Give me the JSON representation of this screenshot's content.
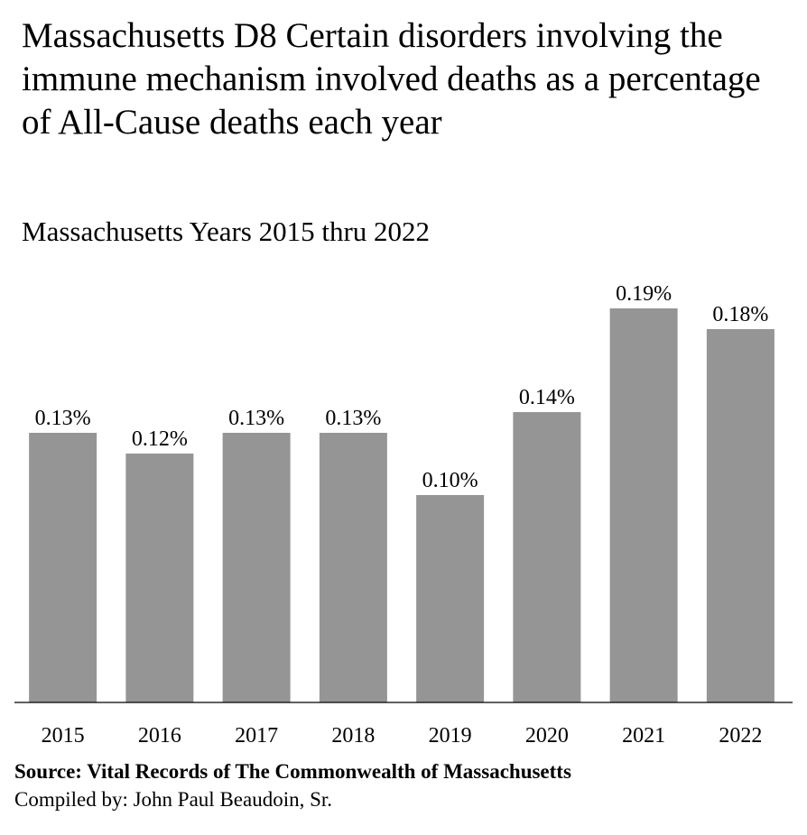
{
  "chart_data": {
    "type": "bar",
    "title": "Massachusetts D8 Certain disorders involving the immune mechanism involved deaths as a percentage of All-Cause deaths each year",
    "subtitle": "Massachusetts Years 2015 thru 2022",
    "categories": [
      "2015",
      "2016",
      "2017",
      "2018",
      "2019",
      "2020",
      "2021",
      "2022"
    ],
    "values": [
      0.13,
      0.12,
      0.13,
      0.13,
      0.1,
      0.14,
      0.19,
      0.18
    ],
    "data_labels": [
      "0.13%",
      "0.12%",
      "0.13%",
      "0.13%",
      "0.10%",
      "0.14%",
      "0.19%",
      "0.18%"
    ],
    "xlabel": "",
    "ylabel": "",
    "ylim": [
      0,
      0.2
    ],
    "grid": false,
    "legend": "none",
    "bar_color": "#959595"
  },
  "footer": {
    "source": "Source:  Vital Records of The Commonwealth of Massachusetts",
    "compiled": "Compiled by:  John Paul Beaudoin, Sr."
  }
}
